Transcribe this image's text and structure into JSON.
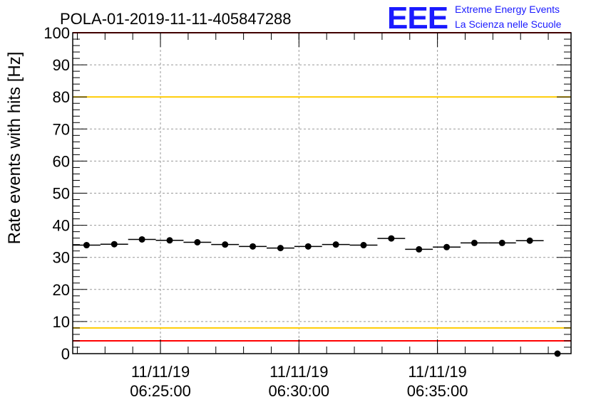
{
  "chart_data": {
    "type": "scatter",
    "title": "POLA-01-2019-11-11-405847288",
    "ylabel": "Rate events with hits [Hz]",
    "xlabel": "",
    "ylim": [
      0,
      100
    ],
    "y_ticks": [
      "0",
      "10",
      "20",
      "30",
      "40",
      "50",
      "60",
      "70",
      "80",
      "90",
      "100"
    ],
    "x_ticks": [
      {
        "date": "11/11/19",
        "time": "06:25:00"
      },
      {
        "date": "11/11/19",
        "time": "06:30:00"
      },
      {
        "date": "11/11/19",
        "time": "06:35:00"
      }
    ],
    "x_range": [
      "06:21:50",
      "06:39:20"
    ],
    "bin_width_seconds": 60,
    "grid": true,
    "reference_lines": [
      {
        "y": 100,
        "color": "#ff0000"
      },
      {
        "y": 80,
        "color": "#ffcc00"
      },
      {
        "y": 8,
        "color": "#ffcc00"
      },
      {
        "y": 4,
        "color": "#ff0000"
      }
    ],
    "points": [
      {
        "x": "06:22:20",
        "y": 33.8
      },
      {
        "x": "06:23:20",
        "y": 34.1
      },
      {
        "x": "06:24:20",
        "y": 35.6
      },
      {
        "x": "06:25:20",
        "y": 35.3
      },
      {
        "x": "06:26:20",
        "y": 34.7
      },
      {
        "x": "06:27:20",
        "y": 34.0
      },
      {
        "x": "06:28:20",
        "y": 33.4
      },
      {
        "x": "06:29:20",
        "y": 32.9
      },
      {
        "x": "06:30:20",
        "y": 33.4
      },
      {
        "x": "06:31:20",
        "y": 34.0
      },
      {
        "x": "06:32:20",
        "y": 33.8
      },
      {
        "x": "06:33:20",
        "y": 35.9
      },
      {
        "x": "06:34:20",
        "y": 32.5
      },
      {
        "x": "06:35:20",
        "y": 33.2
      },
      {
        "x": "06:36:20",
        "y": 34.5
      },
      {
        "x": "06:37:20",
        "y": 34.5
      },
      {
        "x": "06:38:20",
        "y": 35.2
      },
      {
        "x": "06:39:20",
        "y": 0
      }
    ]
  },
  "logo": {
    "text": "EEE",
    "line1": "Extreme Energy Events",
    "line2": "La Scienza nelle Scuole"
  },
  "colors": {
    "marker": "#000000",
    "grid": "#999999",
    "logo": "#1a1aff"
  }
}
